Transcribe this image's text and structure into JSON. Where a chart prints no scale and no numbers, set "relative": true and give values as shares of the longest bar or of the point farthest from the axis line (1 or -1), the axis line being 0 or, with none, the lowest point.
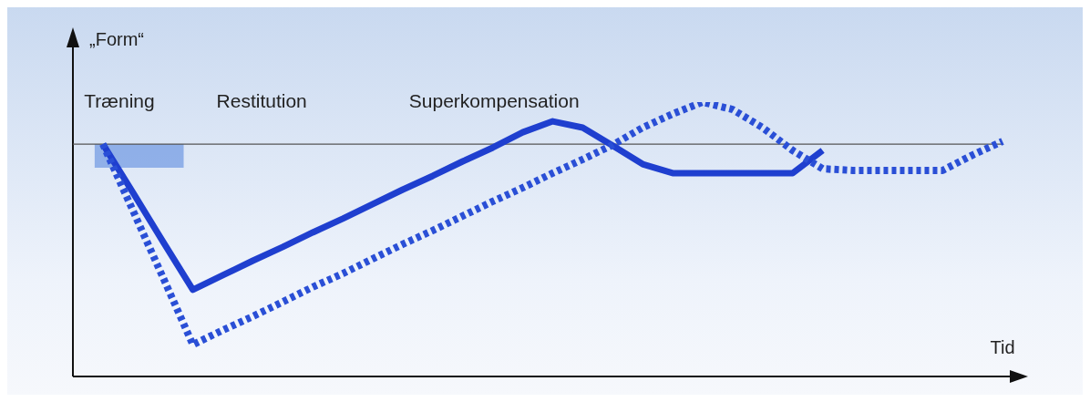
{
  "chart_data": {
    "type": "line",
    "relative": true,
    "ylabel": "„Form“",
    "xlabel": "Tid",
    "annotations": [
      "Træning",
      "Restitution",
      "Superkompensation"
    ],
    "categories": [
      null,
      null,
      null,
      null,
      null,
      null,
      null,
      null,
      null,
      null,
      null,
      null,
      null,
      null,
      null,
      null,
      null,
      null,
      null,
      null,
      null,
      null,
      null,
      null,
      null,
      null,
      null,
      null,
      null,
      null,
      null,
      null
    ],
    "series": [
      {
        "color": "#1f3fcf",
        "line_style": "solid",
        "values": [
          null,
          0.847,
          0.671,
          0.492,
          0.316,
          0.369,
          0.422,
          0.472,
          0.525,
          0.575,
          0.628,
          0.681,
          0.731,
          0.784,
          0.834,
          0.89,
          0.93,
          0.907,
          0.841,
          0.774,
          0.741,
          0.741,
          0.741,
          0.741,
          0.741,
          0.824,
          null,
          null,
          null,
          null,
          null,
          null
        ]
      },
      {
        "color": "#2a4fd6",
        "line_style": "dotted",
        "values": [
          null,
          0.847,
          0.605,
          0.362,
          0.116,
          0.169,
          0.219,
          0.272,
          0.326,
          0.375,
          0.429,
          0.482,
          0.532,
          0.585,
          0.638,
          0.688,
          0.741,
          0.791,
          0.844,
          0.907,
          0.957,
          1,
          0.973,
          0.907,
          0.824,
          0.757,
          0.751,
          0.751,
          0.751,
          0.751,
          0.807,
          0.857
        ]
      }
    ],
    "ref_lines": [
      {
        "axis": "y",
        "value": 0.847,
        "color": "#555555"
      }
    ],
    "grid": false,
    "legend": false,
    "marker": "none"
  }
}
